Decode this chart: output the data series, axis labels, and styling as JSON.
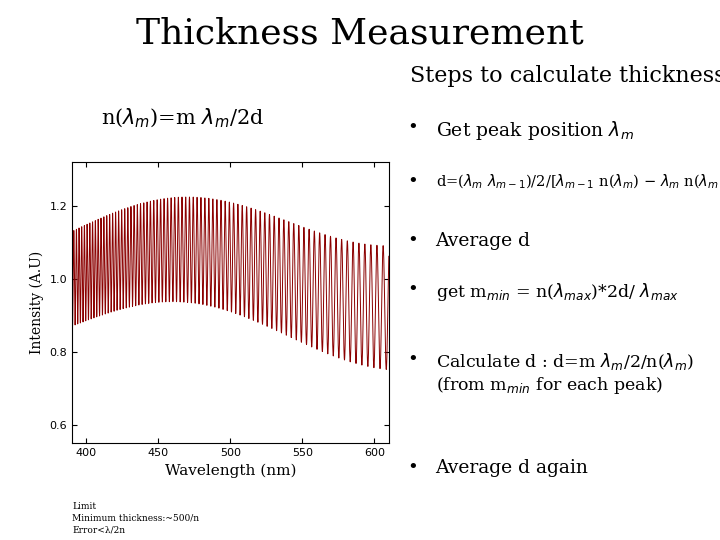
{
  "title": "Thickness Measurement",
  "title_fontsize": 26,
  "plot_xlabel": "Wavelength (nm)",
  "plot_ylabel": "Intensity (A.U)",
  "plot_xlim": [
    390,
    610
  ],
  "plot_ylim": [
    0.55,
    1.32
  ],
  "plot_yticks": [
    0.6,
    0.8,
    1.0,
    1.2
  ],
  "plot_xticks": [
    400,
    450,
    500,
    550,
    600
  ],
  "wave_color": "#8B0000",
  "background_color": "#ffffff",
  "steps_title": "Steps to calculate thickness",
  "steps_title_fontsize": 16,
  "footnote": "Limit\nMinimum thickness:~500/n\nError<λ/2n",
  "footnote_fontsize": 6.5
}
